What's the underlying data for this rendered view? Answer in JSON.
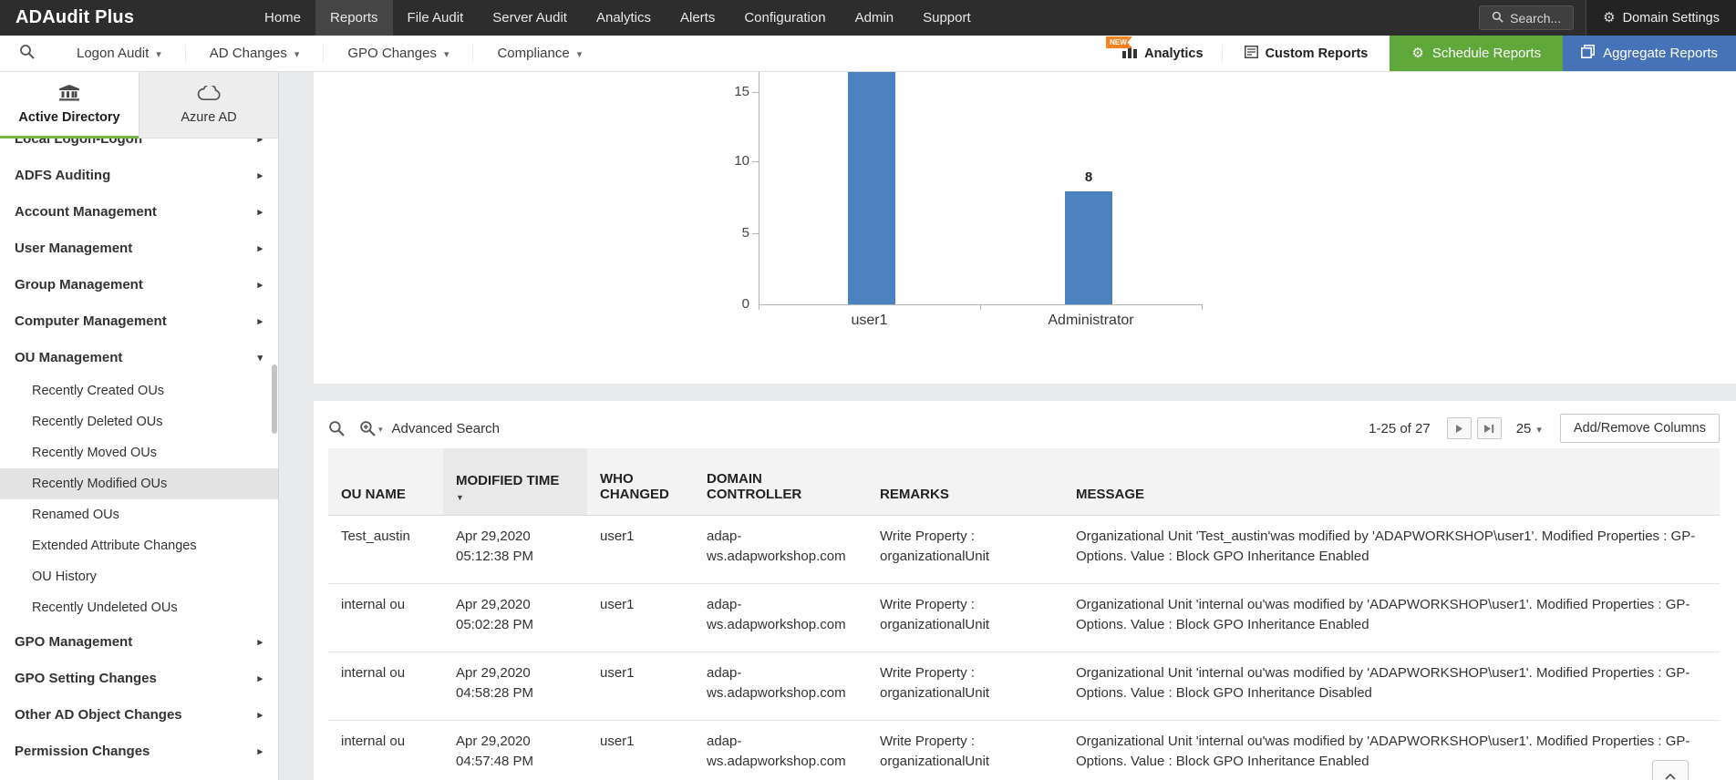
{
  "navbar": {
    "brand": "ADAudit Plus",
    "items": [
      {
        "label": "Home"
      },
      {
        "label": "Reports",
        "active": true
      },
      {
        "label": "File Audit"
      },
      {
        "label": "Server Audit"
      },
      {
        "label": "Analytics"
      },
      {
        "label": "Alerts"
      },
      {
        "label": "Configuration"
      },
      {
        "label": "Admin"
      },
      {
        "label": "Support"
      }
    ],
    "search_label": "Search...",
    "domain_settings_label": "Domain Settings"
  },
  "toolbar": {
    "dropdowns": [
      {
        "label": "Logon Audit"
      },
      {
        "label": "AD Changes"
      },
      {
        "label": "GPO Changes"
      },
      {
        "label": "Compliance"
      }
    ],
    "analytics": {
      "label": "Analytics",
      "badge": "NEW"
    },
    "custom_reports_label": "Custom Reports",
    "schedule_reports_label": "Schedule Reports",
    "aggregate_reports_label": "Aggregate Reports"
  },
  "sidebar": {
    "tabs": [
      {
        "label": "Active Directory",
        "active": true
      },
      {
        "label": "Azure AD",
        "active": false
      }
    ],
    "clipped_item_label": "Local Logon-Logoff",
    "items": [
      {
        "label": "ADFS Auditing",
        "type": "parent"
      },
      {
        "label": "Account Management",
        "type": "parent"
      },
      {
        "label": "User Management",
        "type": "parent"
      },
      {
        "label": "Group Management",
        "type": "parent"
      },
      {
        "label": "Computer Management",
        "type": "parent"
      },
      {
        "label": "OU Management",
        "type": "parent",
        "expanded": true
      },
      {
        "label": "Recently Created OUs",
        "type": "child"
      },
      {
        "label": "Recently Deleted OUs",
        "type": "child"
      },
      {
        "label": "Recently Moved OUs",
        "type": "child"
      },
      {
        "label": "Recently Modified OUs",
        "type": "child",
        "selected": true
      },
      {
        "label": "Renamed OUs",
        "type": "child"
      },
      {
        "label": "Extended Attribute Changes",
        "type": "child"
      },
      {
        "label": "OU History",
        "type": "child"
      },
      {
        "label": "Recently Undeleted OUs",
        "type": "child"
      },
      {
        "label": "GPO Management",
        "type": "parent"
      },
      {
        "label": "GPO Setting Changes",
        "type": "parent"
      },
      {
        "label": "Other AD Object Changes",
        "type": "parent"
      },
      {
        "label": "Permission Changes",
        "type": "parent"
      }
    ]
  },
  "chart_data": {
    "type": "bar",
    "categories": [
      "user1",
      "Administrator"
    ],
    "values": [
      null,
      8
    ],
    "yticks": [
      0,
      5,
      10,
      15
    ],
    "bar_color": "#4d82c0",
    "grid": false,
    "legend": false,
    "note": "user1 bar is clipped at the top edge of the visible chart area; its value label is not visible"
  },
  "table": {
    "advanced_search_label": "Advanced Search",
    "pagination": {
      "range": "1-25 of 27",
      "page_size": "25"
    },
    "add_remove_columns_label": "Add/Remove Columns",
    "columns": [
      {
        "label": "OU NAME"
      },
      {
        "label": "MODIFIED TIME",
        "sorted": "desc"
      },
      {
        "label": "WHO CHANGED"
      },
      {
        "label": "DOMAIN CONTROLLER"
      },
      {
        "label": "REMARKS"
      },
      {
        "label": "MESSAGE"
      }
    ],
    "rows": [
      {
        "ou_name": "Test_austin",
        "modified_time": "Apr 29,2020 05:12:38 PM",
        "who_changed": "user1",
        "domain_controller": "adap-ws.adapworkshop.com",
        "remarks": "Write Property : organizationalUnit",
        "message": "Organizational Unit 'Test_austin'was modified by 'ADAPWORKSHOP\\user1'. Modified Properties : GP-Options. Value : Block GPO Inheritance Enabled"
      },
      {
        "ou_name": "internal ou",
        "modified_time": "Apr 29,2020 05:02:28 PM",
        "who_changed": "user1",
        "domain_controller": "adap-ws.adapworkshop.com",
        "remarks": "Write Property : organizationalUnit",
        "message": "Organizational Unit 'internal ou'was modified by 'ADAPWORKSHOP\\user1'. Modified Properties : GP-Options. Value : Block GPO Inheritance Enabled"
      },
      {
        "ou_name": "internal ou",
        "modified_time": "Apr 29,2020 04:58:28 PM",
        "who_changed": "user1",
        "domain_controller": "adap-ws.adapworkshop.com",
        "remarks": "Write Property : organizationalUnit",
        "message": "Organizational Unit 'internal ou'was modified by 'ADAPWORKSHOP\\user1'. Modified Properties : GP-Options. Value : Block GPO Inheritance Disabled"
      },
      {
        "ou_name": "internal ou",
        "modified_time": "Apr 29,2020 04:57:48 PM",
        "who_changed": "user1",
        "domain_controller": "adap-ws.adapworkshop.com",
        "remarks": "Write Property : organizationalUnit",
        "message": "Organizational Unit 'internal ou'was modified by 'ADAPWORKSHOP\\user1'. Modified Properties : GP-Options. Value : Block GPO Inheritance Enabled"
      }
    ]
  },
  "colors": {
    "navbar_bg": "#2d2d2d",
    "accent_green": "#61a83b",
    "accent_blue": "#4673b8",
    "badge_orange": "#f58220",
    "bar_blue": "#4d82c0",
    "selected_item_bg": "#e3e3e3"
  }
}
